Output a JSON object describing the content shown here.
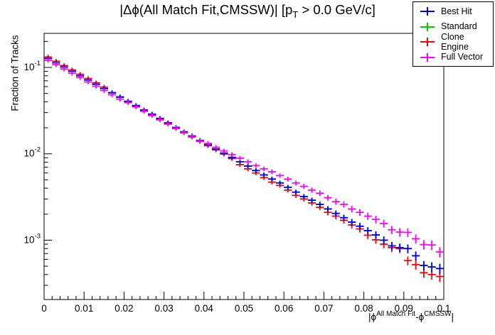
{
  "title": {
    "part1": "|Δϕ(All Match Fit,CMSSW)| [p",
    "sub": "T",
    "part2": " > 0.0 GeV/c]"
  },
  "y_axis": {
    "title": "Fraction of Tracks",
    "ticks": [
      {
        "base": "10",
        "exp": "-1",
        "value": 0.1
      },
      {
        "base": "10",
        "exp": "-2",
        "value": 0.01
      },
      {
        "base": "10",
        "exp": "-3",
        "value": 0.001
      }
    ]
  },
  "x_axis": {
    "title": {
      "p1": "|ϕ",
      "sup1": "All Match Fit",
      "p2": "-ϕ",
      "sup2": "CMSSW",
      "p3": "|"
    },
    "ticks": [
      {
        "label": "0",
        "value": 0.0
      },
      {
        "label": "0.01",
        "value": 0.01
      },
      {
        "label": "0.02",
        "value": 0.02
      },
      {
        "label": "0.03",
        "value": 0.03
      },
      {
        "label": "0.04",
        "value": 0.04
      },
      {
        "label": "0.05",
        "value": 0.05
      },
      {
        "label": "0.06",
        "value": 0.06
      },
      {
        "label": "0.07",
        "value": 0.07
      },
      {
        "label": "0.08",
        "value": 0.08
      },
      {
        "label": "0.09",
        "value": 0.09
      },
      {
        "label": "0.1",
        "value": 0.1
      }
    ]
  },
  "legend": {
    "items": [
      {
        "label": "Best Hit",
        "color": "#0000ff"
      },
      {
        "label": "Standard",
        "color": "#00cc00"
      },
      {
        "label": "Clone Engine",
        "color": "#ff0000"
      },
      {
        "label": "Full Vector",
        "color": "#ff00ff"
      }
    ]
  },
  "chart_data": {
    "type": "scatter",
    "title": "|Δϕ(All Match Fit,CMSSW)| [p_T > 0.0 GeV/c]",
    "xlabel": "|ϕ^{All Match Fit}-ϕ^{CMSSW}|",
    "ylabel": "Fraction of Tracks",
    "yscale": "log",
    "grid": false,
    "legend_position": "top-right",
    "xlim": [
      0,
      0.1
    ],
    "ylim": [
      0.000206,
      0.248
    ],
    "bin_width": 0.002,
    "y_err_rel": {
      "min": 0.015,
      "max": 0.135
    },
    "draw_order": [
      "Standard",
      "Clone Engine",
      "Best Hit",
      "Full Vector"
    ],
    "bin_centers": [
      0.001,
      0.003,
      0.005,
      0.007,
      0.009,
      0.011,
      0.013,
      0.015,
      0.017,
      0.019,
      0.021,
      0.023,
      0.025,
      0.027,
      0.029,
      0.031,
      0.033,
      0.035,
      0.037,
      0.039,
      0.041,
      0.043,
      0.045,
      0.047,
      0.049,
      0.051,
      0.053,
      0.055,
      0.057,
      0.059,
      0.061,
      0.063,
      0.065,
      0.067,
      0.069,
      0.071,
      0.073,
      0.075,
      0.077,
      0.079,
      0.081,
      0.083,
      0.085,
      0.087,
      0.089,
      0.091,
      0.093,
      0.095,
      0.097,
      0.099
    ],
    "series": [
      {
        "name": "Best Hit",
        "color": "#0000ff",
        "values": [
          0.127,
          0.113,
          0.101,
          0.09,
          0.08,
          0.0715,
          0.0638,
          0.0569,
          0.0507,
          0.0452,
          0.0403,
          0.0359,
          0.032,
          0.0286,
          0.0255,
          0.0227,
          0.0202,
          0.018,
          0.0161,
          0.0143,
          0.0128,
          0.0114,
          0.0102,
          0.0091,
          0.0081,
          0.0072,
          0.0064,
          0.0057,
          0.0051,
          0.0046,
          0.0041,
          0.0036,
          0.0032,
          0.0029,
          0.0026,
          0.0023,
          0.00204,
          0.00182,
          0.00162,
          0.00145,
          0.00129,
          0.00115,
          0.001,
          0.00086,
          0.00082,
          0.0008,
          0.00066,
          0.00051,
          0.00049,
          0.00047
        ]
      },
      {
        "name": "Standard",
        "color": "#00cc00",
        "values": [
          0.127,
          0.113,
          0.101,
          0.09,
          0.08,
          0.0715,
          0.0638,
          0.0569,
          0.0507,
          0.0452,
          0.0403,
          0.0359,
          0.032,
          0.0286,
          0.0255,
          0.0227,
          0.0202,
          0.018,
          0.0161,
          0.0143,
          0.0128,
          0.0114,
          0.0102,
          0.0091,
          0.0081,
          0.0072,
          0.0064,
          0.0057,
          0.0051,
          0.0046,
          0.0041,
          0.0036,
          0.0032,
          0.0029,
          0.0026,
          0.0023,
          0.00204,
          0.00182,
          0.00162,
          0.00145,
          0.00129,
          0.00115,
          0.001,
          0.00086,
          0.00082,
          0.0008,
          0.00066,
          0.00051,
          0.00049,
          0.00047
        ]
      },
      {
        "name": "Clone Engine",
        "color": "#ff0000",
        "values": [
          0.132,
          0.118,
          0.105,
          0.0936,
          0.0834,
          0.0744,
          0.0663,
          0.0592,
          0.0512,
          0.0457,
          0.0407,
          0.0363,
          0.0323,
          0.0289,
          0.0258,
          0.0229,
          0.0196,
          0.0175,
          0.0156,
          0.0139,
          0.0124,
          0.0111,
          0.0099,
          0.0088,
          0.0075,
          0.0067,
          0.006,
          0.0053,
          0.0047,
          0.0043,
          0.0038,
          0.0033,
          0.003,
          0.0027,
          0.0024,
          0.0021,
          0.0019,
          0.0017,
          0.0015,
          0.00135,
          0.00114,
          0.00101,
          0.0009,
          0.00082,
          0.0008,
          0.00058,
          0.00052,
          0.00042,
          0.0004,
          0.00038
        ]
      },
      {
        "name": "Full Vector",
        "color": "#ff00ff",
        "values": [
          0.1206,
          0.1075,
          0.0958,
          0.0855,
          0.0762,
          0.0679,
          0.0606,
          0.054,
          0.0482,
          0.0429,
          0.0391,
          0.0348,
          0.031,
          0.0277,
          0.0247,
          0.022,
          0.0198,
          0.0177,
          0.0158,
          0.0141,
          0.0132,
          0.0119,
          0.0108,
          0.0098,
          0.0089,
          0.0081,
          0.0073,
          0.0067,
          0.0062,
          0.0056,
          0.0051,
          0.0046,
          0.0042,
          0.0038,
          0.0035,
          0.0031,
          0.0028,
          0.0026,
          0.0023,
          0.0021,
          0.0019,
          0.00174,
          0.00156,
          0.00132,
          0.00124,
          0.00123,
          0.00104,
          0.00089,
          0.00088,
          0.00073
        ]
      }
    ]
  }
}
